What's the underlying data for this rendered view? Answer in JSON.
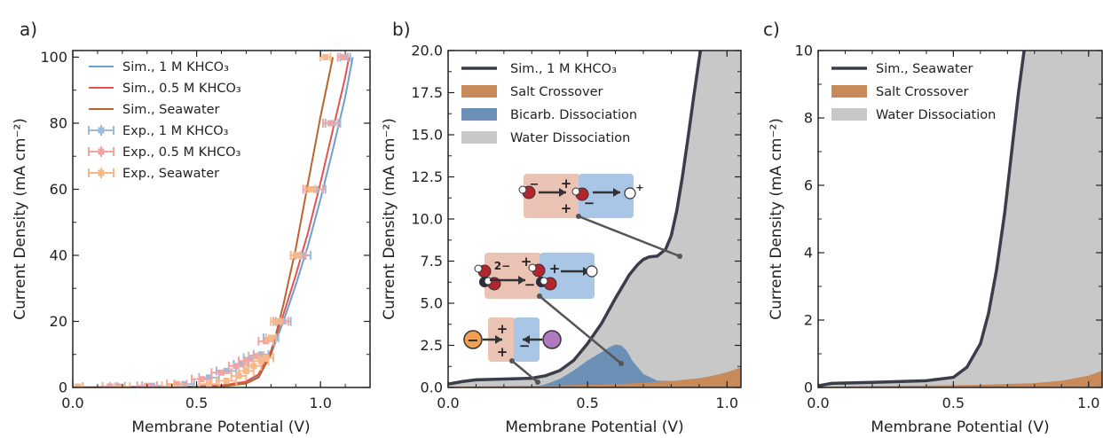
{
  "chart_data": [
    {
      "panel": "a)",
      "type": "line",
      "xlabel": "Membrane Potential (V)",
      "ylabel": "Current Density (mA cm⁻²)",
      "xlim": [
        0.0,
        1.2
      ],
      "ylim": [
        0,
        102
      ],
      "xticks": [
        "0.0",
        "0.5",
        "1.0"
      ],
      "yticks": [
        "0",
        "20",
        "40",
        "60",
        "80",
        "100"
      ],
      "legend_position": "upper-left",
      "series": [
        {
          "name": "Sim., 1 M KHCO₃",
          "kind": "line",
          "color": "#6f9fcf",
          "x": [
            0.0,
            0.5,
            0.6,
            0.7,
            0.75,
            0.8,
            0.85,
            0.9,
            0.95,
            1.0,
            1.05,
            1.1,
            1.13
          ],
          "y": [
            0,
            0.3,
            0.6,
            1.5,
            3.5,
            10,
            20,
            31,
            43,
            57,
            72,
            88,
            100
          ]
        },
        {
          "name": "Sim., 0.5 M KHCO₃",
          "kind": "line",
          "color": "#e4534f",
          "x": [
            0.0,
            0.5,
            0.6,
            0.7,
            0.75,
            0.8,
            0.85,
            0.9,
            0.95,
            1.0,
            1.05,
            1.1,
            1.115
          ],
          "y": [
            0,
            0.3,
            0.6,
            1.8,
            4,
            11,
            22,
            34,
            47,
            62,
            78,
            94,
            100
          ]
        },
        {
          "name": "Sim., Seawater",
          "kind": "line",
          "color": "#b9652f",
          "x": [
            0.0,
            0.5,
            0.6,
            0.7,
            0.75,
            0.8,
            0.85,
            0.9,
            0.95,
            1.0,
            1.05
          ],
          "y": [
            0,
            0.1,
            0.3,
            1.2,
            3,
            10,
            25,
            42,
            62,
            82,
            100
          ]
        },
        {
          "name": "Exp., 1 M KHCO₃",
          "kind": "errorbar",
          "color": "#9bbbdc",
          "x": [
            0.02,
            0.18,
            0.32,
            0.45,
            0.55,
            0.62,
            0.68,
            0.72,
            0.76,
            0.8,
            0.85,
            0.93,
            0.98,
            1.05,
            1.1
          ],
          "y": [
            0.2,
            0.3,
            0.5,
            1,
            3,
            5,
            7,
            9,
            10,
            15,
            20,
            40,
            60,
            80,
            100
          ],
          "xerr": [
            0.02,
            0.03,
            0.04,
            0.04,
            0.04,
            0.04,
            0.03,
            0.03,
            0.03,
            0.03,
            0.03,
            0.03,
            0.04,
            0.03,
            0.02
          ]
        },
        {
          "name": "Exp., 0.5 M KHCO₃",
          "kind": "errorbar",
          "color": "#f2a3a3",
          "x": [
            0.02,
            0.15,
            0.3,
            0.42,
            0.52,
            0.6,
            0.66,
            0.7,
            0.74,
            0.78,
            0.84,
            0.91,
            0.97,
            1.04,
            1.09
          ],
          "y": [
            0.2,
            0.3,
            0.5,
            1,
            2.5,
            4.5,
            6.5,
            8,
            9.5,
            14,
            20,
            40,
            60,
            80,
            100
          ],
          "xerr": [
            0.02,
            0.03,
            0.04,
            0.04,
            0.04,
            0.04,
            0.03,
            0.03,
            0.03,
            0.03,
            0.03,
            0.03,
            0.04,
            0.03,
            0.02
          ]
        },
        {
          "name": "Exp., Seawater",
          "kind": "errorbar",
          "color": "#f5b98a",
          "x": [
            0.02,
            0.2,
            0.4,
            0.55,
            0.62,
            0.67,
            0.7,
            0.73,
            0.76,
            0.78,
            0.8,
            0.82,
            0.9,
            0.96,
            1.02
          ],
          "y": [
            0.1,
            0.2,
            0.4,
            1,
            2,
            3.5,
            5,
            6.5,
            8,
            9,
            15,
            20,
            40,
            60,
            100
          ],
          "xerr": [
            0.02,
            0.03,
            0.04,
            0.04,
            0.04,
            0.03,
            0.03,
            0.03,
            0.03,
            0.03,
            0.02,
            0.02,
            0.02,
            0.02,
            0.02
          ]
        }
      ]
    },
    {
      "panel": "b)",
      "type": "area",
      "xlabel": "Membrane Potential (V)",
      "ylabel": "Current Density (mA cm⁻²)",
      "xlim": [
        0.0,
        1.05
      ],
      "ylim": [
        0,
        20
      ],
      "xticks": [
        "0.0",
        "0.5",
        "1.0"
      ],
      "yticks": [
        "0.0",
        "2.5",
        "5.0",
        "7.5",
        "10.0",
        "12.5",
        "15.0",
        "17.5",
        "20.0"
      ],
      "legend_position": "upper-left",
      "series": [
        {
          "name": "Sim., 1 M KHCO₃",
          "kind": "line",
          "color": "#3b3d4a",
          "x": [
            0.0,
            0.05,
            0.1,
            0.2,
            0.3,
            0.35,
            0.4,
            0.45,
            0.5,
            0.55,
            0.6,
            0.65,
            0.68,
            0.7,
            0.72,
            0.75,
            0.78,
            0.8,
            0.82,
            0.84,
            0.86,
            0.88,
            0.9,
            0.91
          ],
          "y": [
            0.2,
            0.35,
            0.45,
            0.5,
            0.55,
            0.7,
            1.0,
            1.6,
            2.6,
            3.8,
            5.3,
            6.7,
            7.3,
            7.6,
            7.75,
            7.8,
            8.2,
            9.0,
            10.5,
            12.5,
            14.8,
            17.2,
            19.5,
            20.5
          ]
        },
        {
          "name": "Salt Crossover",
          "kind": "area",
          "color": "#c98a5a",
          "x": [
            0.0,
            0.2,
            0.4,
            0.6,
            0.7,
            0.8,
            0.9,
            0.95,
            1.0,
            1.05
          ],
          "y": [
            0.05,
            0.08,
            0.12,
            0.2,
            0.28,
            0.38,
            0.55,
            0.7,
            0.9,
            1.2
          ]
        },
        {
          "name": "Bicarb. Dissociation",
          "kind": "area",
          "color": "#6b8fb5",
          "x": [
            0.3,
            0.35,
            0.4,
            0.45,
            0.5,
            0.55,
            0.58,
            0.6,
            0.62,
            0.64,
            0.66,
            0.7,
            0.75,
            0.8
          ],
          "y": [
            0.0,
            0.2,
            0.5,
            1.0,
            1.6,
            2.1,
            2.4,
            2.55,
            2.5,
            2.2,
            1.6,
            0.8,
            0.4,
            0.38
          ]
        },
        {
          "name": "Water Dissociation",
          "kind": "area",
          "color": "#c8c8c8"
        }
      ],
      "inset_labels": [
        "−",
        "+",
        "+",
        "−",
        "+",
        "2−",
        "+",
        "−",
        "+",
        "−",
        "+",
        "+",
        "−"
      ]
    },
    {
      "panel": "c)",
      "type": "area",
      "xlabel": "Membrane Potential (V)",
      "ylabel": "Current Density (mA cm⁻²)",
      "xlim": [
        0.0,
        1.05
      ],
      "ylim": [
        0,
        10
      ],
      "xticks": [
        "0.0",
        "0.5",
        "1.0"
      ],
      "yticks": [
        "0",
        "2",
        "4",
        "6",
        "8",
        "10"
      ],
      "legend_position": "upper-left",
      "series": [
        {
          "name": "Sim., Seawater",
          "kind": "line",
          "color": "#3b3d4a",
          "x": [
            0.0,
            0.05,
            0.2,
            0.4,
            0.5,
            0.55,
            0.6,
            0.63,
            0.66,
            0.69,
            0.72,
            0.74,
            0.76,
            0.77
          ],
          "y": [
            0.05,
            0.12,
            0.15,
            0.2,
            0.3,
            0.6,
            1.3,
            2.2,
            3.5,
            5.2,
            7.3,
            8.7,
            9.9,
            10.4
          ]
        },
        {
          "name": "Salt Crossover",
          "kind": "area",
          "color": "#c98a5a",
          "x": [
            0.0,
            0.3,
            0.6,
            0.8,
            0.9,
            1.0,
            1.05
          ],
          "y": [
            0.02,
            0.05,
            0.08,
            0.13,
            0.2,
            0.35,
            0.5
          ]
        },
        {
          "name": "Water Dissociation",
          "kind": "area",
          "color": "#c8c8c8"
        }
      ]
    }
  ]
}
